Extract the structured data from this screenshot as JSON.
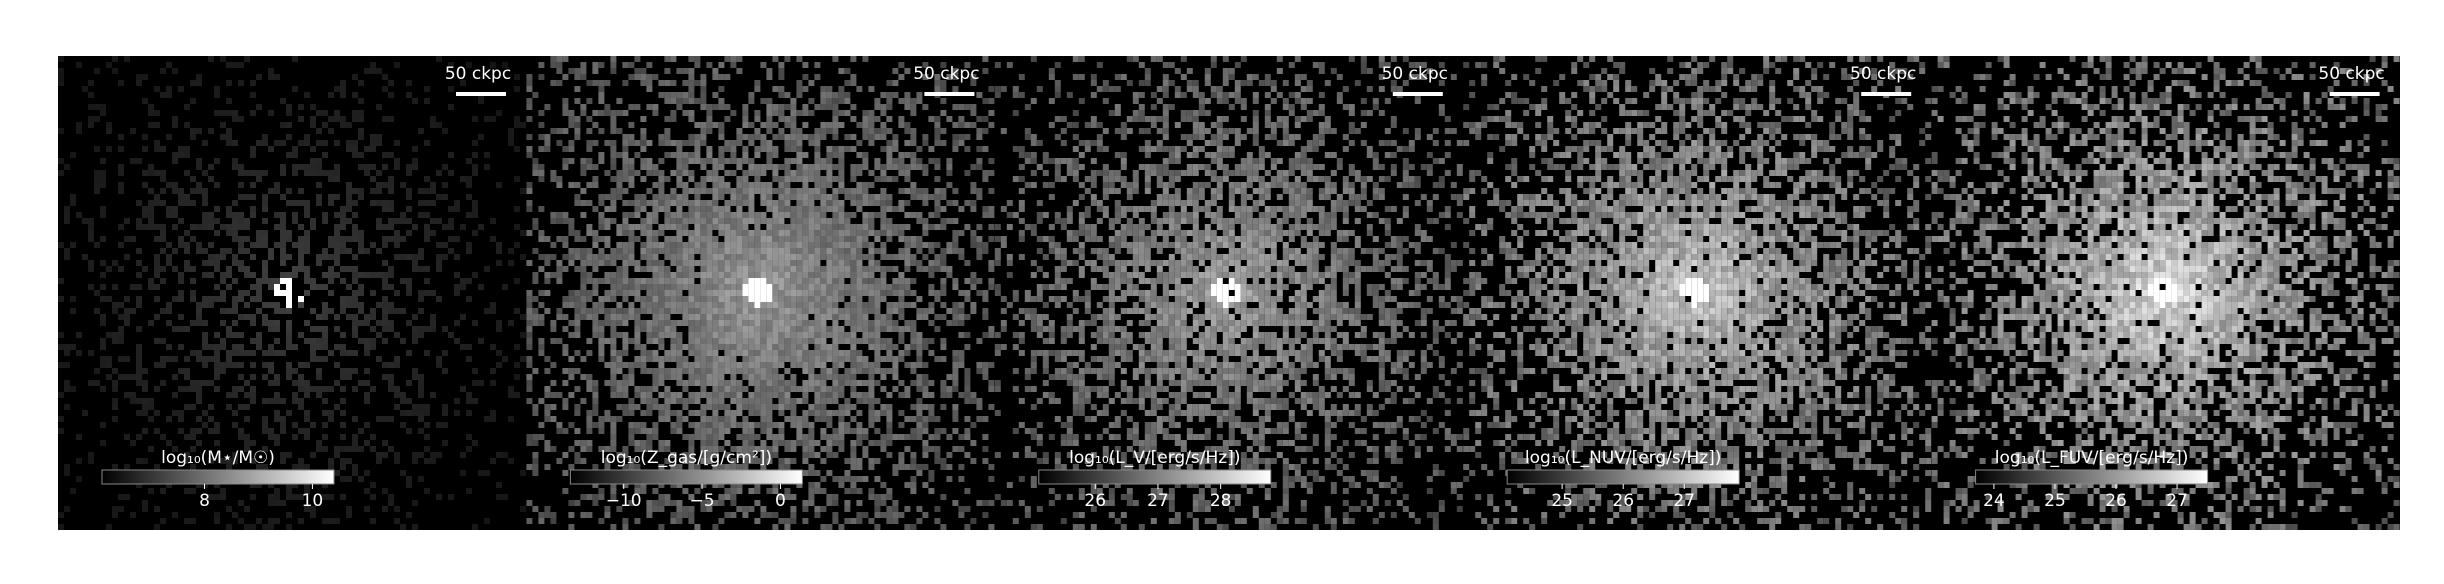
{
  "chart_data": [
    {
      "type": "image",
      "scale_label": "50 ckpc",
      "colorbar_label": "log₁₀(M⋆/M☉)",
      "clim": [
        6.1,
        10.4
      ],
      "cticks": [
        8,
        10
      ]
    },
    {
      "type": "image",
      "scale_label": "50 ckpc",
      "colorbar_label": "log₁₀(Z_gas/[g/cm²])",
      "clim": [
        -13.4,
        1.4
      ],
      "cticks": [
        {
          "value": -10,
          "label": "−10"
        },
        {
          "value": -5,
          "label": "−5"
        },
        0
      ]
    },
    {
      "type": "image",
      "scale_label": "50 ckpc",
      "colorbar_label": "log₁₀(L_V/[erg/s/Hz])",
      "clim": [
        25.1,
        28.8
      ],
      "cticks": [
        26,
        27,
        28
      ]
    },
    {
      "type": "image",
      "scale_label": "50 ckpc",
      "colorbar_label": "log₁₀(L_NUV/[erg/s/Hz])",
      "clim": [
        24.1,
        27.9
      ],
      "cticks": [
        25,
        26,
        27
      ]
    },
    {
      "type": "image",
      "scale_label": "50 ckpc",
      "colorbar_label": "log₁₀(L_FUV/[erg/s/Hz])",
      "clim": [
        23.7,
        27.5
      ],
      "cticks": [
        24,
        25,
        26,
        27
      ]
    }
  ]
}
